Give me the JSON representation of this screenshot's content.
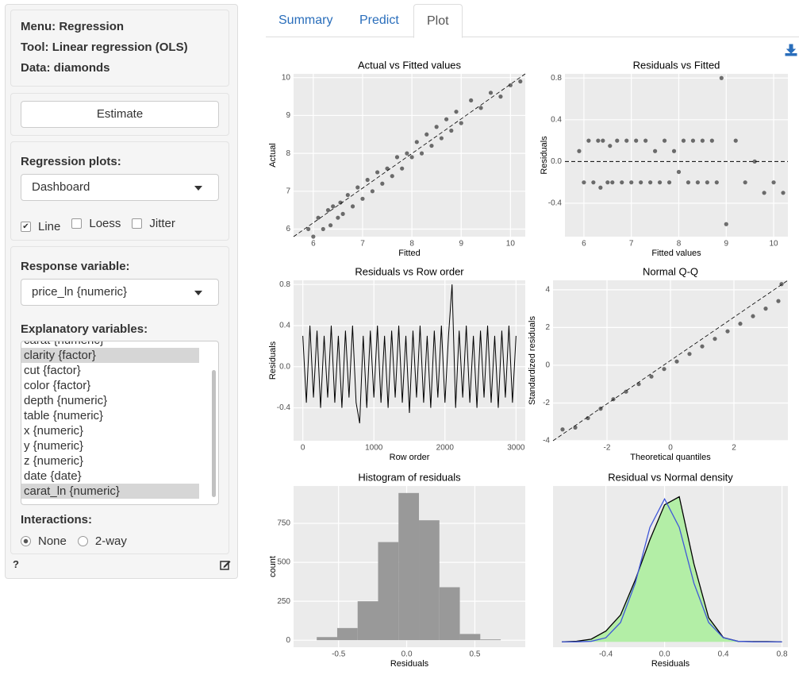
{
  "sidebar": {
    "menu": "Menu: Regression",
    "tool": "Tool: Linear regression (OLS)",
    "data": "Data: diamonds",
    "estimate": "Estimate",
    "plots_label": "Regression plots:",
    "plots_value": "Dashboard",
    "checkboxes": [
      {
        "label": "Line",
        "checked": true
      },
      {
        "label": "Loess",
        "checked": false
      },
      {
        "label": "Jitter",
        "checked": false
      }
    ],
    "response_label": "Response variable:",
    "response_value": "price_ln {numeric}",
    "explanatory_label": "Explanatory variables:",
    "explanatory": [
      {
        "label": "carat {numeric}",
        "selected": false
      },
      {
        "label": "clarity {factor}",
        "selected": true
      },
      {
        "label": "cut {factor}",
        "selected": false
      },
      {
        "label": "color {factor}",
        "selected": false
      },
      {
        "label": "depth {numeric}",
        "selected": false
      },
      {
        "label": "table {numeric}",
        "selected": false
      },
      {
        "label": "x {numeric}",
        "selected": false
      },
      {
        "label": "y {numeric}",
        "selected": false
      },
      {
        "label": "z {numeric}",
        "selected": false
      },
      {
        "label": "date {date}",
        "selected": false
      },
      {
        "label": "carat_ln {numeric}",
        "selected": true
      }
    ],
    "interactions_label": "Interactions:",
    "interactions": [
      {
        "label": "None",
        "checked": true
      },
      {
        "label": "2-way",
        "checked": false
      }
    ],
    "help": "?"
  },
  "tabs": [
    {
      "label": "Summary",
      "active": false
    },
    {
      "label": "Predict",
      "active": false
    },
    {
      "label": "Plot",
      "active": true
    }
  ],
  "chart_data": [
    {
      "type": "scatter",
      "title": "Actual vs Fitted values",
      "x_label": "Fitted",
      "y_label": "Actual",
      "color": "#000000",
      "x": [
        5.9,
        6.0,
        6.1,
        6.2,
        6.3,
        6.35,
        6.4,
        6.5,
        6.55,
        6.6,
        6.7,
        6.8,
        6.9,
        7.0,
        7.1,
        7.2,
        7.3,
        7.4,
        7.5,
        7.6,
        7.7,
        7.8,
        7.9,
        8.0,
        8.1,
        8.2,
        8.3,
        8.4,
        8.5,
        8.6,
        8.7,
        8.8,
        8.9,
        9.0,
        9.2,
        9.4,
        9.6,
        9.8,
        10.0,
        10.2
      ],
      "values": [
        6.0,
        5.8,
        6.3,
        6.0,
        6.5,
        6.1,
        6.6,
        6.3,
        6.7,
        6.4,
        6.9,
        6.6,
        7.1,
        6.8,
        7.3,
        7.0,
        7.5,
        7.2,
        7.6,
        7.4,
        7.9,
        7.6,
        8.0,
        7.9,
        8.3,
        8.0,
        8.5,
        8.2,
        8.7,
        8.4,
        8.9,
        8.6,
        9.1,
        8.8,
        9.4,
        9.2,
        9.6,
        9.5,
        9.8,
        9.9
      ],
      "xlim": [
        5.6,
        10.3
      ],
      "xticks": [
        6,
        7,
        8,
        9,
        10
      ],
      "ylim": [
        5.8,
        10.1
      ],
      "yticks": [
        6,
        7,
        8,
        9,
        10
      ]
    },
    {
      "type": "scatter",
      "title": "Residuals vs Fitted",
      "x_label": "Fitted values",
      "y_label": "Residuals",
      "color": "#000000",
      "x": [
        5.9,
        6.0,
        6.1,
        6.2,
        6.3,
        6.35,
        6.4,
        6.5,
        6.55,
        6.6,
        6.7,
        6.8,
        6.9,
        7.0,
        7.1,
        7.2,
        7.3,
        7.4,
        7.5,
        7.6,
        7.7,
        7.8,
        7.9,
        8.0,
        8.1,
        8.2,
        8.3,
        8.4,
        8.5,
        8.6,
        8.7,
        8.8,
        8.9,
        9.0,
        9.2,
        9.4,
        9.6,
        9.8,
        10.0,
        10.2
      ],
      "values": [
        0.1,
        -0.2,
        0.2,
        -0.2,
        0.2,
        -0.25,
        0.2,
        -0.2,
        0.15,
        -0.2,
        0.2,
        -0.2,
        0.2,
        -0.2,
        0.2,
        -0.2,
        0.2,
        -0.2,
        0.1,
        -0.2,
        0.2,
        -0.2,
        0.1,
        -0.1,
        0.2,
        -0.2,
        0.2,
        -0.2,
        0.2,
        -0.2,
        0.2,
        -0.2,
        0.8,
        -0.6,
        0.2,
        -0.2,
        0.0,
        -0.3,
        -0.2,
        -0.3
      ],
      "xlim": [
        5.6,
        10.3
      ],
      "xticks": [
        6,
        7,
        8,
        9,
        10
      ],
      "ylim": [
        -0.72,
        0.84
      ],
      "yticks": [
        -0.4,
        {
          "value": 0,
          "label": "0.0"
        },
        0.4,
        0.8
      ]
    },
    {
      "type": "line",
      "title": "Residuals vs Row order",
      "x_label": "Row order",
      "y_label": "Residuals",
      "color": "#000000",
      "x": [
        0,
        50,
        100,
        150,
        200,
        250,
        300,
        350,
        400,
        450,
        500,
        550,
        600,
        650,
        700,
        750,
        800,
        850,
        900,
        950,
        1000,
        1050,
        1100,
        1150,
        1200,
        1250,
        1300,
        1350,
        1400,
        1450,
        1500,
        1550,
        1600,
        1650,
        1700,
        1750,
        1800,
        1850,
        1900,
        1950,
        2000,
        2050,
        2100,
        2150,
        2200,
        2250,
        2300,
        2350,
        2400,
        2450,
        2500,
        2550,
        2600,
        2650,
        2700,
        2750,
        2800,
        2850,
        2900,
        2950,
        3000
      ],
      "values": [
        0.3,
        -0.35,
        0.4,
        -0.3,
        0.35,
        -0.4,
        0.3,
        -0.3,
        0.4,
        -0.35,
        0.3,
        -0.4,
        0.35,
        -0.3,
        0.4,
        -0.35,
        -0.55,
        0.3,
        -0.4,
        0.35,
        -0.3,
        0.4,
        -0.35,
        0.3,
        -0.4,
        0.35,
        -0.3,
        0.4,
        -0.35,
        0.3,
        -0.45,
        0.35,
        -0.3,
        0.4,
        -0.35,
        0.3,
        -0.4,
        0.35,
        -0.3,
        0.4,
        -0.35,
        0.3,
        0.8,
        -0.4,
        0.35,
        -0.3,
        0.4,
        -0.35,
        0.3,
        -0.4,
        0.35,
        -0.3,
        0.4,
        -0.35,
        0.3,
        -0.4,
        0.35,
        -0.3,
        0.4,
        -0.35,
        0.3
      ],
      "xlim": [
        -130,
        3130
      ],
      "xticks": [
        0,
        1000,
        2000,
        3000
      ],
      "ylim": [
        -0.72,
        0.84
      ],
      "yticks": [
        -0.4,
        {
          "value": 0,
          "label": "0.0"
        },
        0.4,
        0.8
      ]
    },
    {
      "type": "scatter",
      "title": "Normal Q-Q",
      "x_label": "Theoretical quantiles",
      "y_label": "Standardized residuals",
      "color": "#000000",
      "x": [
        -3.4,
        -3,
        -2.6,
        -2.2,
        -1.8,
        -1.4,
        -1,
        -0.6,
        -0.2,
        0.2,
        0.6,
        1,
        1.4,
        1.8,
        2.2,
        2.6,
        3,
        3.4,
        3.5
      ],
      "values": [
        -3.4,
        -3.3,
        -2.8,
        -2.3,
        -1.8,
        -1.4,
        -1,
        -0.6,
        -0.2,
        0.2,
        0.6,
        1,
        1.4,
        1.8,
        2.2,
        2.6,
        3.0,
        3.4,
        4.3
      ],
      "xlim": [
        -3.7,
        3.7
      ],
      "xticks": [
        -2,
        0,
        2
      ],
      "ylim": [
        -4,
        4.5
      ],
      "yticks": [
        -4,
        -2,
        0,
        2,
        4
      ]
    },
    {
      "type": "histogram",
      "title": "Histogram of residuals",
      "x_label": "Residuals",
      "y_label": "count",
      "color": "#999999",
      "bins": [
        -0.66,
        -0.51,
        -0.36,
        -0.21,
        -0.06,
        0.09,
        0.24,
        0.39,
        0.54,
        0.69
      ],
      "values": [
        20,
        78,
        250,
        630,
        945,
        770,
        340,
        40,
        5
      ],
      "xlim": [
        -0.83,
        0.87
      ],
      "xticks": [
        -0.5,
        {
          "value": 0,
          "label": "0.0"
        },
        0.5
      ],
      "ylim": [
        -45,
        990
      ],
      "yticks": [
        0,
        250,
        500,
        750
      ]
    },
    {
      "type": "density",
      "title": "Residual vs Normal density",
      "x_label": "Residuals",
      "fill": "#b3eea6",
      "x": [
        -0.7,
        -0.6,
        -0.5,
        -0.4,
        -0.3,
        -0.2,
        -0.1,
        0,
        0.1,
        0.2,
        0.3,
        0.4,
        0.5,
        0.6,
        0.7,
        0.8
      ],
      "series": [
        {
          "color": "#000000",
          "values": [
            0,
            0.01,
            0.05,
            0.2,
            0.5,
            1.15,
            1.9,
            2.55,
            2.7,
            1.45,
            0.45,
            0.08,
            0.01,
            0.005,
            0.005,
            0
          ]
        },
        {
          "color": "#3f57d9",
          "values": [
            0,
            0.001,
            0.01,
            0.076,
            0.36,
            1.09,
            2.13,
            2.66,
            2.13,
            1.09,
            0.36,
            0.076,
            0.01,
            0.001,
            0,
            0
          ]
        }
      ],
      "xlim": [
        -0.76,
        0.84
      ],
      "xticks": [
        -0.4,
        {
          "value": 0,
          "label": "0.0"
        },
        0.4,
        0.8
      ],
      "ylim": [
        -0.1,
        2.9
      ]
    }
  ]
}
